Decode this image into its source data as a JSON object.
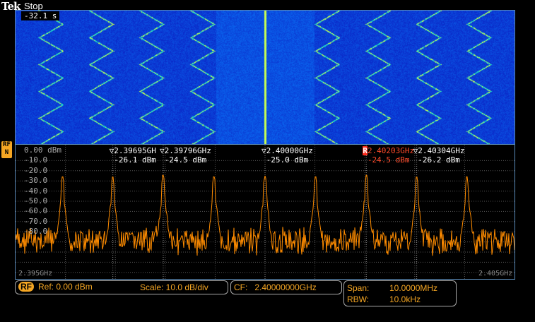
{
  "header": {
    "brand": "Tek",
    "state": "Stop",
    "elapsed": "-32.1 s"
  },
  "channel_badge": "RF",
  "channel_badge_sub": "N",
  "colors": {
    "trace": "#ff8c00",
    "ref_marker": "#ff4a2a",
    "grid": "#555555",
    "spectrogram_bg": "#0a2ad8"
  },
  "y_axis": {
    "unit_top": "0.00 dBm",
    "labels": [
      "-10.0",
      "-20.0",
      "-30.0",
      "-40.0",
      "-50.0",
      "-60.0",
      "-70.0",
      "-80.0"
    ],
    "range_dbm": [
      0,
      -130
    ]
  },
  "x_axis": {
    "start": "2.395GHz",
    "stop": "2.405GHz",
    "range_ghz": [
      2.395,
      2.405
    ]
  },
  "markers": [
    {
      "freq": "2.39695GH",
      "level": "-26.1 dBm",
      "ghz": 2.39695,
      "ref": false
    },
    {
      "freq": "2.39796GHz",
      "level": "-24.5 dBm",
      "ghz": 2.39796,
      "ref": false
    },
    {
      "freq": "2.40000GHz",
      "level": "-25.0 dBm",
      "ghz": 2.4,
      "ref": false
    },
    {
      "freq": "2.40203GHz",
      "level": "-24.5 dBm",
      "ghz": 2.40203,
      "ref": true,
      "ref_label": "R"
    },
    {
      "freq": "2.40304GHz",
      "level": "-26.2 dBm",
      "ghz": 2.40304,
      "ref": false
    }
  ],
  "peaks": [
    {
      "ghz": 2.39594,
      "dbm": -26
    },
    {
      "ghz": 2.39695,
      "dbm": -26.1
    },
    {
      "ghz": 2.39796,
      "dbm": -24.5
    },
    {
      "ghz": 2.39898,
      "dbm": -26
    },
    {
      "ghz": 2.4,
      "dbm": -25.0
    },
    {
      "ghz": 2.40101,
      "dbm": -26
    },
    {
      "ghz": 2.40203,
      "dbm": -24.5
    },
    {
      "ghz": 2.40304,
      "dbm": -26.2
    },
    {
      "ghz": 2.40405,
      "dbm": -26
    }
  ],
  "noise_floor_dbm": -82,
  "status": {
    "rf": "RF",
    "ref": "Ref: 0.00 dBm",
    "scale": "Scale: 10.0 dB/div",
    "cf_label": "CF:",
    "cf": "2.40000000GHz",
    "span_label": "Span:",
    "span": "10.0000MHz",
    "rbw_label": "RBW:",
    "rbw": "10.0kHz"
  }
}
